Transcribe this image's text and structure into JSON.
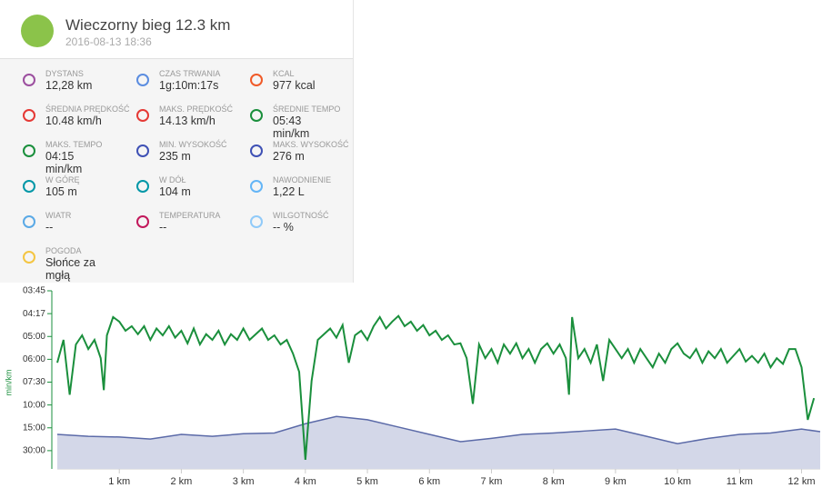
{
  "card": {
    "title": "Wieczorny bieg 12.3 km",
    "date": "2016-08-13 18:36",
    "stats": [
      {
        "label": "DYSTANS",
        "value": "12,28 km"
      },
      {
        "label": "CZAS TRWANIA",
        "value": "1g:10m:17s"
      },
      {
        "label": "KCAL",
        "value": "977 kcal"
      },
      {
        "label": "ŚREDNIA PRĘDKOŚĆ",
        "value": "10.48 km/h"
      },
      {
        "label": "MAKS. PRĘDKOŚĆ",
        "value": "14.13 km/h"
      },
      {
        "label": "ŚREDNIE TEMPO",
        "value": "05:43 min/km"
      },
      {
        "label": "MAKS. TEMPO",
        "value": "04:15 min/km"
      },
      {
        "label": "MIN. WYSOKOŚĆ",
        "value": "235 m"
      },
      {
        "label": "MAKS. WYSOKOŚĆ",
        "value": "276 m"
      },
      {
        "label": "W GÓRĘ",
        "value": "105 m"
      },
      {
        "label": "W DÓŁ",
        "value": "104 m"
      },
      {
        "label": "NAWODNIENIE",
        "value": "1,22 L"
      },
      {
        "label": "WIATR",
        "value": "--"
      },
      {
        "label": "TEMPERATURA",
        "value": "--"
      },
      {
        "label": "WILGOTNOŚĆ",
        "value": "-- %"
      },
      {
        "label": "POGODA",
        "value": "Słońce za mgłą"
      }
    ]
  },
  "chart_data": {
    "type": "line",
    "y_label": "min/km",
    "xlim": [
      0,
      12.3
    ],
    "ylim": [
      0.4,
      16
    ],
    "y2lim": [
      197,
      465
    ],
    "xticks": [
      {
        "value": 1,
        "label": "1 km"
      },
      {
        "value": 2,
        "label": "2 km"
      },
      {
        "value": 3,
        "label": "3 km"
      },
      {
        "value": 4,
        "label": "4 km"
      },
      {
        "value": 5,
        "label": "5 km"
      },
      {
        "value": 6,
        "label": "6 km"
      },
      {
        "value": 7,
        "label": "7 km"
      },
      {
        "value": 8,
        "label": "8 km"
      },
      {
        "value": 9,
        "label": "9 km"
      },
      {
        "value": 10,
        "label": "10 km"
      },
      {
        "value": 11,
        "label": "11 km"
      },
      {
        "value": 12,
        "label": "12 km"
      }
    ],
    "yticks": [
      {
        "value": 16,
        "label": "03:45"
      },
      {
        "value": 14,
        "label": "04:17"
      },
      {
        "value": 12,
        "label": "05:00"
      },
      {
        "value": 10,
        "label": "06:00"
      },
      {
        "value": 8,
        "label": "07:30"
      },
      {
        "value": 6,
        "label": "10:00"
      },
      {
        "value": 4,
        "label": "15:00"
      },
      {
        "value": 2,
        "label": "30:00"
      }
    ],
    "series": [
      {
        "type": "area",
        "axis": "y2",
        "color": "#5b6aa8",
        "fill": "#d3d7e8",
        "x": [
          0,
          0.5,
          1,
          1.5,
          2,
          2.5,
          3,
          3.5,
          4,
          4.5,
          5,
          5.5,
          6,
          6.5,
          7,
          7.5,
          8,
          8.5,
          9,
          9.5,
          10,
          10.5,
          11,
          11.5,
          12,
          12.3
        ],
        "values": [
          249,
          246,
          245,
          242,
          249,
          246,
          250,
          251,
          265,
          276,
          271,
          260,
          249,
          238,
          243,
          249,
          251,
          254,
          257,
          246,
          235,
          243,
          249,
          251,
          257,
          253
        ]
      },
      {
        "type": "line",
        "axis": "y",
        "color": "#1a8f3c",
        "x": [
          0,
          0.1,
          0.2,
          0.3,
          0.4,
          0.5,
          0.6,
          0.7,
          0.75,
          0.8,
          0.9,
          1,
          1.1,
          1.2,
          1.3,
          1.4,
          1.5,
          1.6,
          1.7,
          1.8,
          1.9,
          2,
          2.1,
          2.2,
          2.3,
          2.4,
          2.5,
          2.6,
          2.7,
          2.8,
          2.9,
          3,
          3.1,
          3.2,
          3.3,
          3.4,
          3.5,
          3.6,
          3.7,
          3.8,
          3.9,
          4,
          4.1,
          4.2,
          4.3,
          4.4,
          4.5,
          4.6,
          4.7,
          4.8,
          4.9,
          5,
          5.1,
          5.2,
          5.3,
          5.4,
          5.5,
          5.6,
          5.7,
          5.8,
          5.9,
          6,
          6.1,
          6.2,
          6.3,
          6.4,
          6.5,
          6.6,
          6.7,
          6.8,
          6.9,
          7,
          7.1,
          7.2,
          7.3,
          7.4,
          7.5,
          7.6,
          7.7,
          7.8,
          7.9,
          8,
          8.1,
          8.2,
          8.25,
          8.3,
          8.4,
          8.5,
          8.6,
          8.7,
          8.8,
          8.9,
          9,
          9.1,
          9.2,
          9.3,
          9.4,
          9.5,
          9.6,
          9.7,
          9.8,
          9.9,
          10,
          10.1,
          10.2,
          10.3,
          10.4,
          10.5,
          10.6,
          10.7,
          10.8,
          10.9,
          11,
          11.1,
          11.2,
          11.3,
          11.4,
          11.5,
          11.6,
          11.7,
          11.8,
          11.9,
          12,
          12.1,
          12.2
        ],
        "values": [
          9.7,
          11.7,
          6.9,
          11.3,
          12.1,
          10.9,
          11.7,
          10.1,
          7.3,
          12.1,
          13.7,
          13.3,
          12.5,
          12.9,
          12.2,
          12.9,
          11.7,
          12.7,
          12.1,
          12.9,
          11.9,
          12.5,
          11.4,
          12.7,
          11.3,
          12.2,
          11.7,
          12.5,
          11.3,
          12.2,
          11.7,
          12.7,
          11.7,
          12.2,
          12.7,
          11.7,
          12.1,
          11.3,
          11.7,
          10.5,
          8.9,
          1.2,
          8.1,
          11.7,
          12.2,
          12.7,
          11.9,
          13.0,
          9.7,
          12.1,
          12.5,
          11.7,
          12.9,
          13.7,
          12.7,
          13.3,
          13.8,
          12.9,
          13.3,
          12.5,
          13.0,
          12.1,
          12.5,
          11.7,
          12.1,
          11.3,
          11.4,
          10.1,
          6.1,
          11.3,
          10.1,
          10.9,
          9.7,
          11.3,
          10.5,
          11.4,
          10.1,
          10.9,
          9.7,
          10.9,
          11.4,
          10.5,
          11.3,
          10.1,
          6.9,
          13.7,
          10.1,
          10.9,
          9.7,
          11.3,
          8.1,
          11.7,
          10.9,
          10.1,
          10.9,
          9.7,
          10.9,
          10.1,
          9.3,
          10.5,
          9.7,
          10.9,
          11.4,
          10.5,
          10.1,
          10.9,
          9.7,
          10.7,
          10.1,
          10.9,
          9.7,
          10.3,
          10.9,
          9.8,
          10.3,
          9.7,
          10.5,
          9.3,
          10.1,
          9.6,
          10.9,
          10.9,
          9.3,
          4.7,
          6.6
        ]
      }
    ]
  }
}
